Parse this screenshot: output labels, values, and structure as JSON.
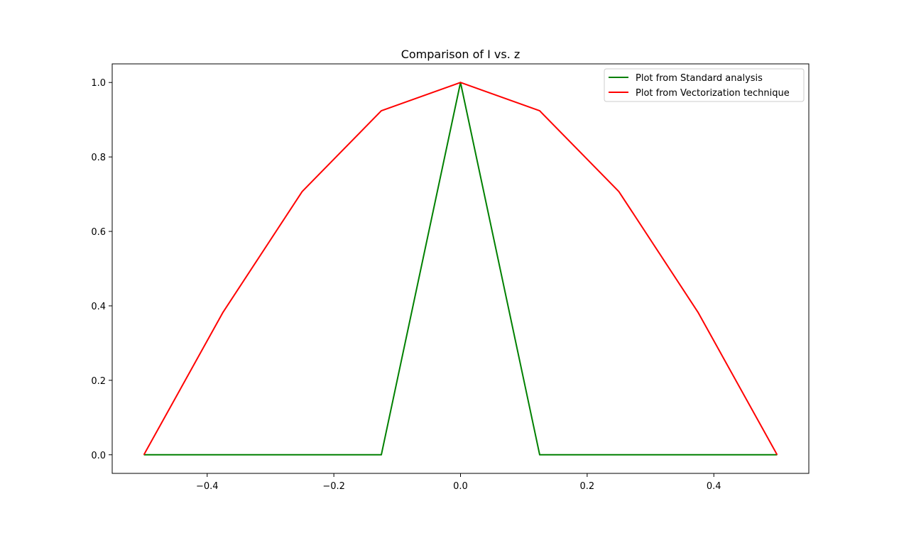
{
  "chart_data": {
    "type": "line",
    "title": "Comparison of I vs. z",
    "xlabel": "",
    "ylabel": "",
    "xlim": [
      -0.55,
      0.55
    ],
    "ylim": [
      -0.05,
      1.05
    ],
    "grid": false,
    "legend_position": "top-right",
    "x_ticks": [
      -0.4,
      -0.2,
      0.0,
      0.2,
      0.4
    ],
    "x_tick_labels": [
      "−0.4",
      "−0.2",
      "0.0",
      "0.2",
      "0.4"
    ],
    "y_ticks": [
      0.0,
      0.2,
      0.4,
      0.6,
      0.8,
      1.0
    ],
    "y_tick_labels": [
      "0.0",
      "0.2",
      "0.4",
      "0.6",
      "0.8",
      "1.0"
    ],
    "series": [
      {
        "name": "Plot from Standard analysis",
        "color": "#008000",
        "x": [
          -0.5,
          -0.375,
          -0.25,
          -0.125,
          0.0,
          0.125,
          0.25,
          0.375,
          0.5
        ],
        "y": [
          0.0,
          0.0,
          0.0,
          0.0,
          1.0,
          0.0,
          0.0,
          0.0,
          0.0
        ]
      },
      {
        "name": "Plot from Vectorization technique",
        "color": "#ff0000",
        "x": [
          -0.5,
          -0.375,
          -0.25,
          -0.125,
          0.0,
          0.125,
          0.25,
          0.375,
          0.5
        ],
        "y": [
          0.0,
          0.383,
          0.707,
          0.924,
          1.0,
          0.924,
          0.707,
          0.383,
          0.0
        ]
      }
    ]
  }
}
